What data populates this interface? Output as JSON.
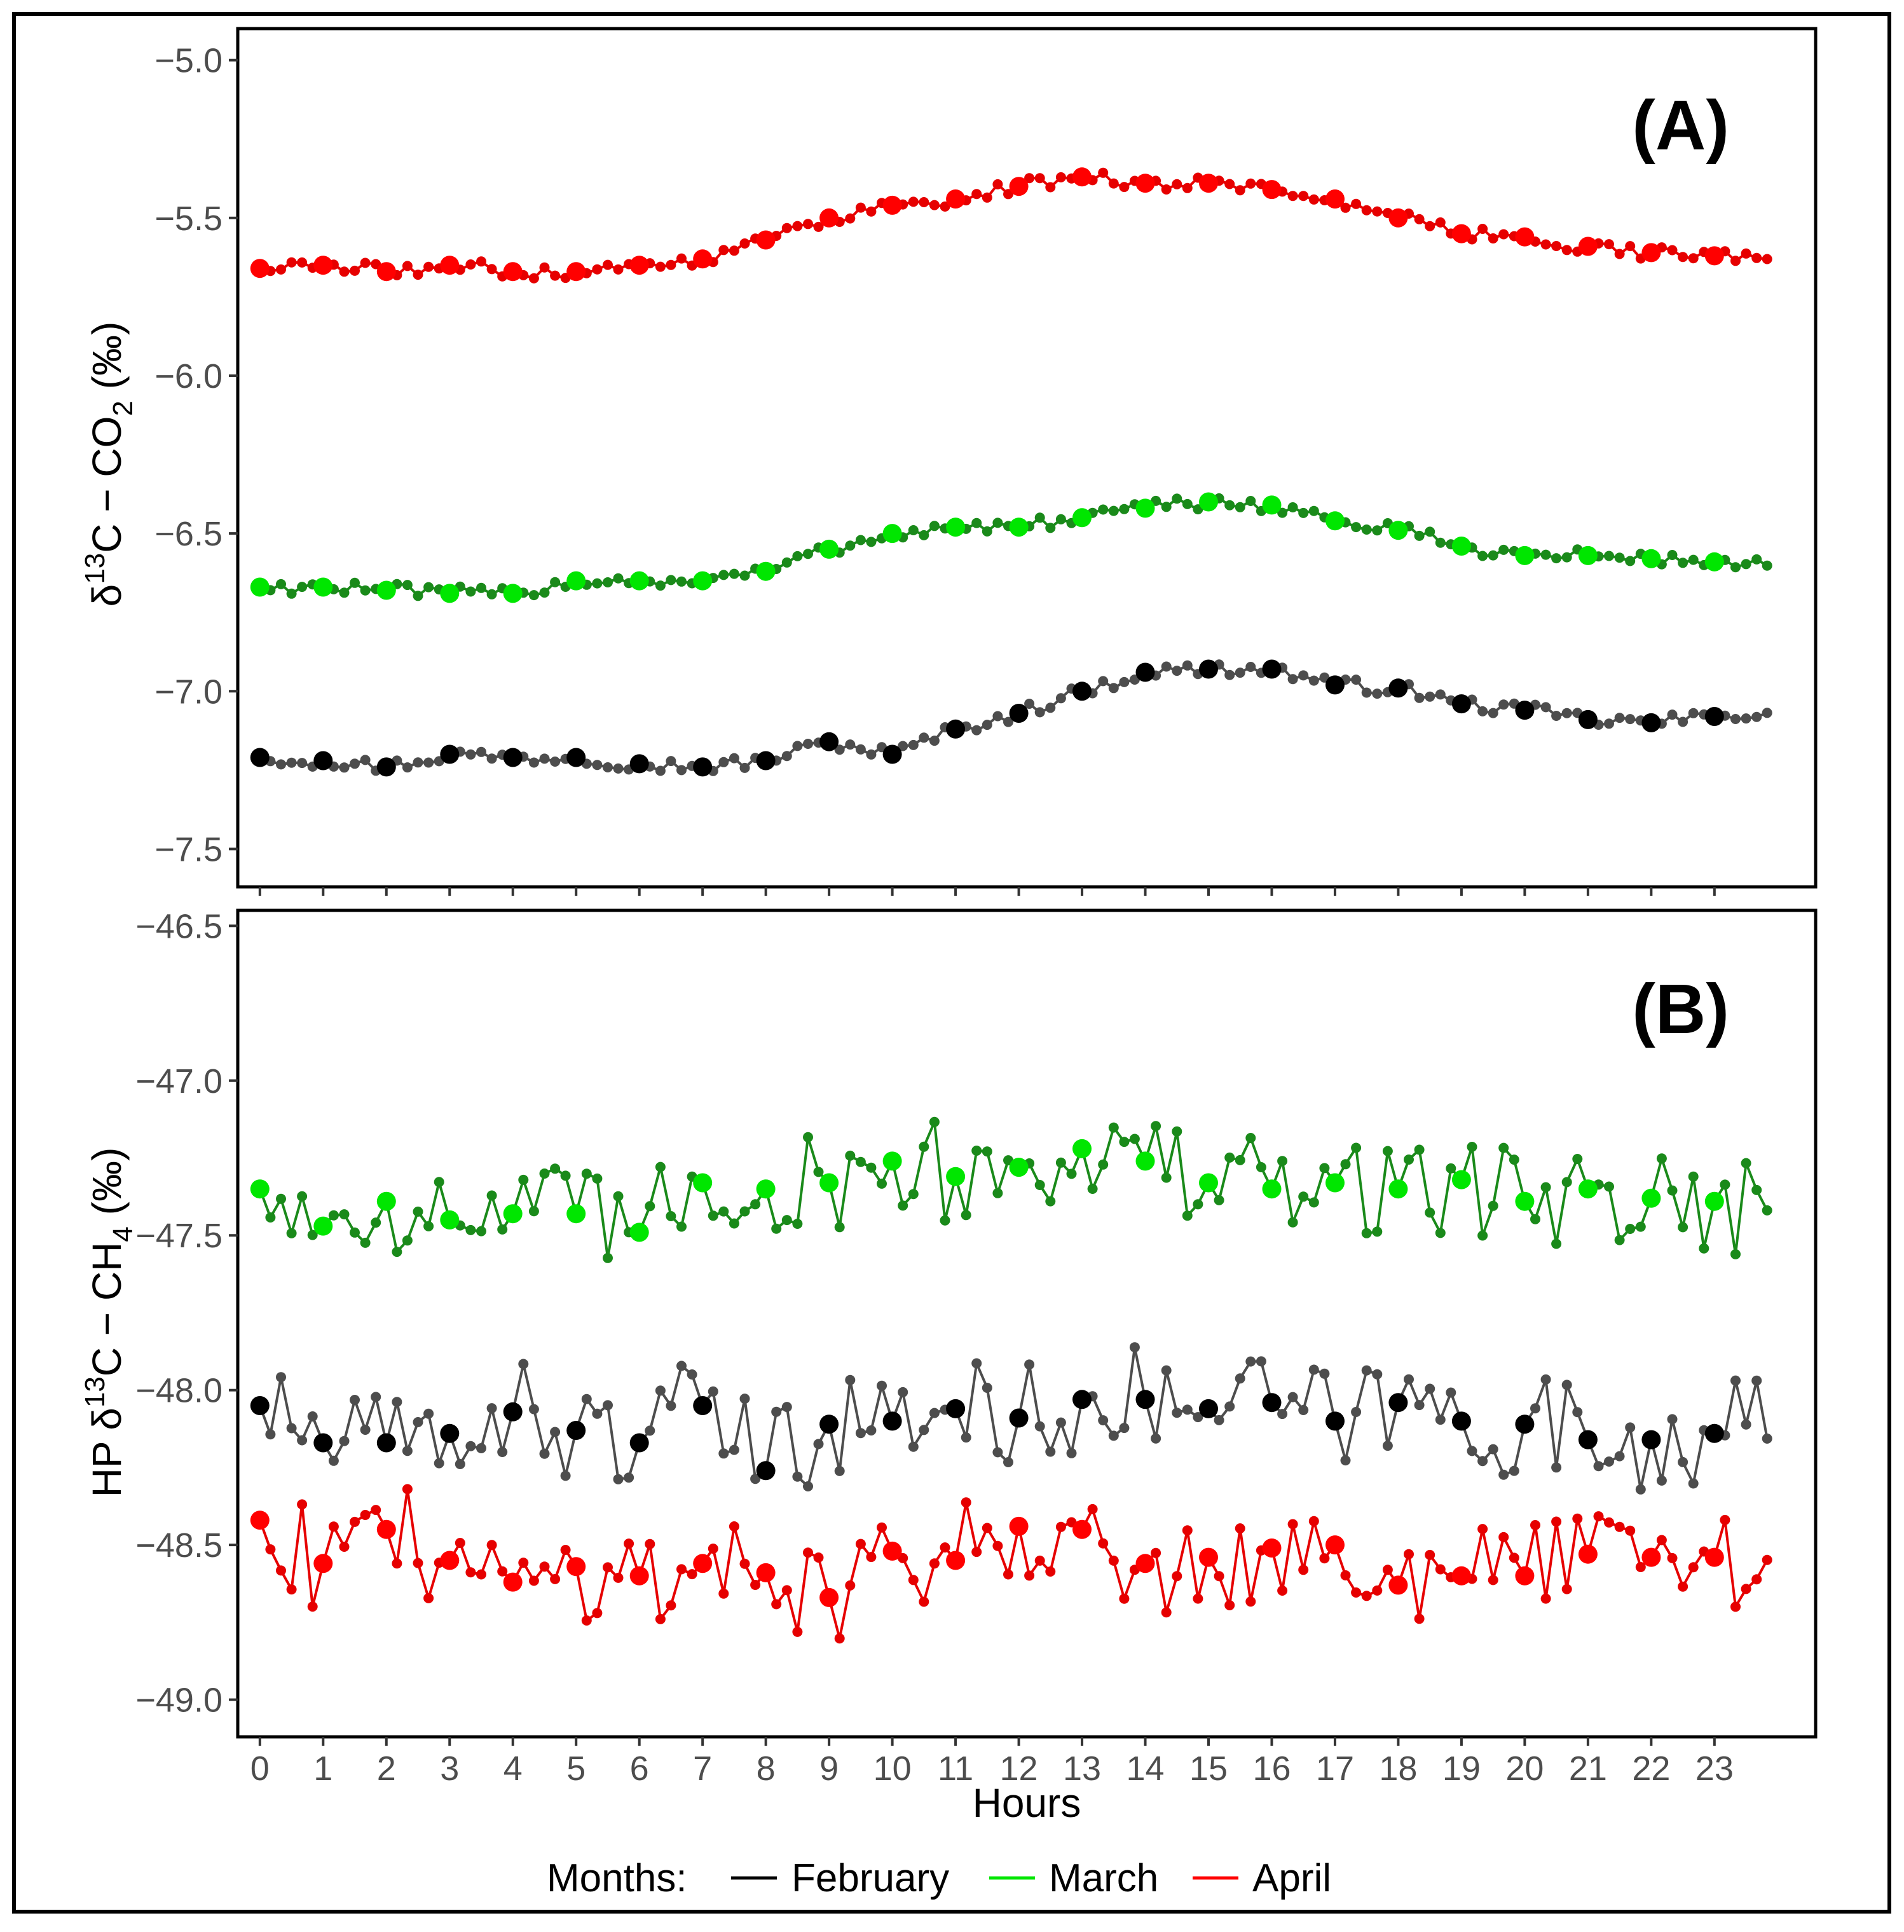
{
  "chart_data": [
    {
      "type": "line",
      "panel_label": "(A)",
      "ylabel_main": "δ",
      "ylabel_sup": "13",
      "ylabel_mid": "C − CO",
      "ylabel_sub": "2",
      "ylabel_end": " (‰)",
      "ylim": [
        -7.62,
        -4.9
      ],
      "yticks": [
        -5.0,
        -5.5,
        -6.0,
        -6.5,
        -7.0,
        -7.5
      ],
      "ytick_labels": [
        "−5.0",
        "−5.5",
        "−6.0",
        "−6.5",
        "−7.0",
        "−7.5"
      ],
      "series": [
        {
          "name": "February",
          "color": "#4d4d4d",
          "hourly_color": "#000000",
          "hourly": [
            -7.21,
            -7.22,
            -7.24,
            -7.2,
            -7.21,
            -7.21,
            -7.23,
            -7.24,
            -7.22,
            -7.16,
            -7.2,
            -7.12,
            -7.07,
            -7.0,
            -6.94,
            -6.93,
            -6.93,
            -6.98,
            -6.99,
            -7.04,
            -7.06,
            -7.09,
            -7.1,
            -7.08
          ]
        },
        {
          "name": "March",
          "color": "#1a8a1a",
          "hourly_color": "#00e600",
          "hourly": [
            -6.67,
            -6.67,
            -6.68,
            -6.69,
            -6.69,
            -6.65,
            -6.65,
            -6.65,
            -6.62,
            -6.55,
            -6.5,
            -6.48,
            -6.48,
            -6.45,
            -6.42,
            -6.4,
            -6.41,
            -6.46,
            -6.49,
            -6.54,
            -6.57,
            -6.57,
            -6.58,
            -6.59
          ]
        },
        {
          "name": "April",
          "color": "#e60000",
          "hourly_color": "#ff0000",
          "hourly": [
            -5.66,
            -5.65,
            -5.67,
            -5.65,
            -5.67,
            -5.67,
            -5.65,
            -5.63,
            -5.57,
            -5.5,
            -5.46,
            -5.44,
            -5.4,
            -5.37,
            -5.39,
            -5.39,
            -5.41,
            -5.44,
            -5.5,
            -5.55,
            -5.56,
            -5.59,
            -5.61,
            -5.62
          ]
        }
      ]
    },
    {
      "type": "line",
      "panel_label": "(B)",
      "ylabel_main": "HP δ",
      "ylabel_sup": "13",
      "ylabel_mid": "C − CH",
      "ylabel_sub": "4",
      "ylabel_end": " (‰)",
      "ylim": [
        -49.12,
        -46.45
      ],
      "yticks": [
        -46.5,
        -47.0,
        -47.5,
        -48.0,
        -48.5,
        -49.0
      ],
      "ytick_labels": [
        "−46.5",
        "−47.0",
        "−47.5",
        "−48.0",
        "−48.5",
        "−49.0"
      ],
      "series": [
        {
          "name": "February",
          "color": "#4d4d4d",
          "hourly_color": "#000000",
          "hourly": [
            -48.05,
            -48.17,
            -48.17,
            -48.14,
            -48.07,
            -48.13,
            -48.17,
            -48.05,
            -48.26,
            -48.11,
            -48.1,
            -48.06,
            -48.09,
            -48.03,
            -48.03,
            -48.06,
            -48.04,
            -48.1,
            -48.04,
            -48.1,
            -48.11,
            -48.16,
            -48.16,
            -48.14
          ]
        },
        {
          "name": "March",
          "color": "#1a8a1a",
          "hourly_color": "#00e600",
          "hourly": [
            -47.35,
            -47.47,
            -47.39,
            -47.45,
            -47.43,
            -47.43,
            -47.49,
            -47.33,
            -47.35,
            -47.33,
            -47.26,
            -47.31,
            -47.28,
            -47.22,
            -47.26,
            -47.33,
            -47.35,
            -47.33,
            -47.35,
            -47.32,
            -47.39,
            -47.35,
            -47.38,
            -47.39
          ]
        },
        {
          "name": "April",
          "color": "#e60000",
          "hourly_color": "#ff0000",
          "hourly": [
            -48.42,
            -48.56,
            -48.45,
            -48.55,
            -48.62,
            -48.57,
            -48.6,
            -48.56,
            -48.59,
            -48.67,
            -48.52,
            -48.55,
            -48.44,
            -48.45,
            -48.56,
            -48.54,
            -48.51,
            -48.5,
            -48.63,
            -48.6,
            -48.6,
            -48.53,
            -48.54,
            -48.54
          ]
        }
      ]
    }
  ],
  "x_axis": {
    "label": "Hours",
    "xlim": [
      -0.35,
      24.6
    ],
    "ticks": [
      0,
      1,
      2,
      3,
      4,
      5,
      6,
      7,
      8,
      9,
      10,
      11,
      12,
      13,
      14,
      15,
      16,
      17,
      18,
      19,
      20,
      21,
      22,
      23
    ],
    "tick_labels": [
      "0",
      "1",
      "2",
      "3",
      "4",
      "5",
      "6",
      "7",
      "8",
      "9",
      "10",
      "11",
      "12",
      "13",
      "14",
      "15",
      "16",
      "17",
      "18",
      "19",
      "20",
      "21",
      "22",
      "23"
    ]
  },
  "legend": {
    "position": "bottom",
    "title": "Months:",
    "items": [
      {
        "label": "February",
        "color": "#000000"
      },
      {
        "label": "March",
        "color": "#00e600"
      },
      {
        "label": "April",
        "color": "#ff0000"
      }
    ]
  }
}
